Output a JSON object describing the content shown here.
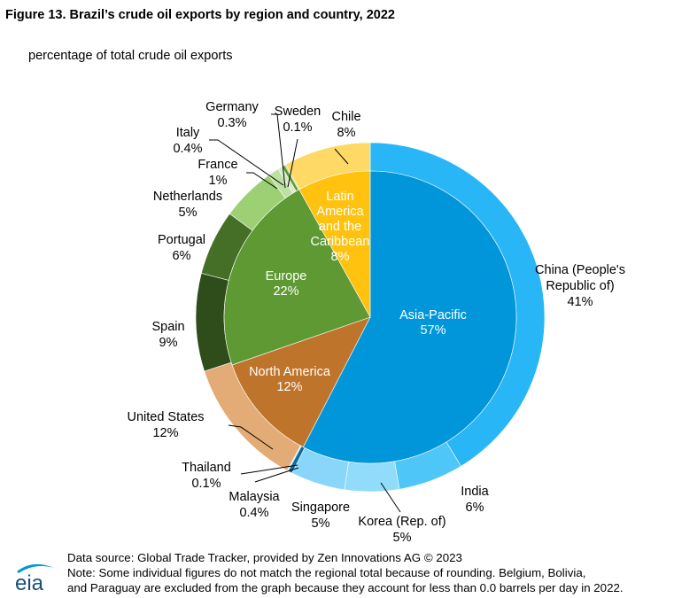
{
  "title": "Figure 13. Brazil’s crude oil exports by region and country, 2022",
  "subtitle": "percentage of total crude oil exports",
  "chart_data": {
    "type": "pie",
    "subtype": "nested-donut",
    "unit": "percent",
    "inner_ring": [
      {
        "label": [
          "Asia-Pacific"
        ],
        "value": 57,
        "value_label": "57%",
        "color": "#0096d9"
      },
      {
        "label": [
          "North America"
        ],
        "value": 12,
        "value_label": "12%",
        "color": "#bf742b"
      },
      {
        "label": [
          "Europe"
        ],
        "value": 22,
        "value_label": "22%",
        "color": "#5e9933"
      },
      {
        "label": [
          "Latin",
          "America",
          "and the",
          "Caribbean"
        ],
        "value": 8,
        "value_label": "8%",
        "color": "#ffc20e"
      }
    ],
    "outer_ring": [
      {
        "label": [
          "China (People's",
          "Republic of)"
        ],
        "value": 41,
        "value_label": "41%",
        "color": "#29b6f6"
      },
      {
        "label": [
          "India"
        ],
        "value": 6,
        "value_label": "6%",
        "color": "#4fc6f8"
      },
      {
        "label": [
          "Korea (Rep. of)"
        ],
        "value": 5,
        "value_label": "5%",
        "color": "#92dcfb"
      },
      {
        "label": [
          "Singapore"
        ],
        "value": 5,
        "value_label": "5%",
        "color": "#8ad6fa"
      },
      {
        "label": [
          "Malaysia"
        ],
        "value": 0.4,
        "value_label": "0.4%",
        "color": "#0b6f9e"
      },
      {
        "label": [
          "Thailand"
        ],
        "value": 0.1,
        "value_label": "0.1%",
        "color": "#b8e6fb"
      },
      {
        "label": [
          "United States"
        ],
        "value": 12,
        "value_label": "12%",
        "color": "#e3ac76"
      },
      {
        "label": [
          "Spain"
        ],
        "value": 9,
        "value_label": "9%",
        "color": "#2e4d1a"
      },
      {
        "label": [
          "Portugal"
        ],
        "value": 6,
        "value_label": "6%",
        "color": "#456f27"
      },
      {
        "label": [
          "Netherlands"
        ],
        "value": 5,
        "value_label": "5%",
        "color": "#9dcf74"
      },
      {
        "label": [
          "France"
        ],
        "value": 1,
        "value_label": "1%",
        "color": "#bde0a3"
      },
      {
        "label": [
          "Italy"
        ],
        "value": 0.4,
        "value_label": "0.4%",
        "color": "#d6ecc5"
      },
      {
        "label": [
          "Germany"
        ],
        "value": 0.3,
        "value_label": "0.3%",
        "color": "#5e9933"
      },
      {
        "label": [
          "Sweden"
        ],
        "value": 0.1,
        "value_label": "0.1%",
        "color": "#8cc063"
      },
      {
        "label": [
          "Chile"
        ],
        "value": 8,
        "value_label": "8%",
        "color": "#ffd966"
      }
    ]
  },
  "footer": {
    "source": "Data source: Global Trade Tracker, provided by Zen Innovations AG © 2023",
    "note_line1": "Note: Some individual figures do not match the regional total because of rounding. Belgium, Bolivia,",
    "note_line2": "and Paraguay are excluded from the graph because they account for less than 0.0 barrels per day in 2022.",
    "logo": "eia"
  }
}
